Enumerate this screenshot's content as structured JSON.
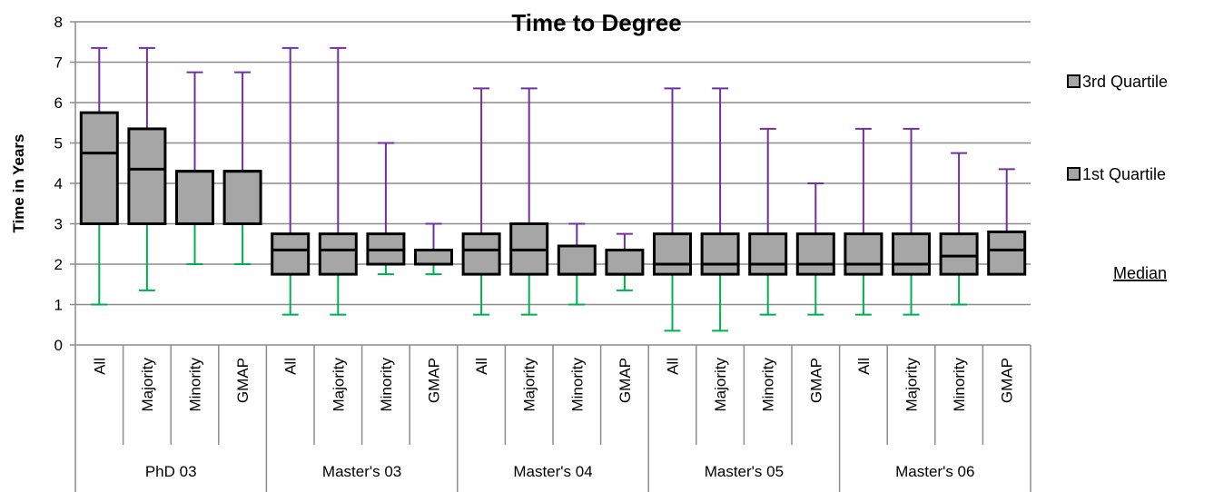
{
  "chart_data": {
    "type": "box",
    "title": "Time to Degree",
    "ylabel": "Time in Years",
    "xlabel": "",
    "ylim": [
      0,
      8
    ],
    "yticks": [
      "0",
      "1",
      "2",
      "3",
      "4",
      "5",
      "6",
      "7",
      "8"
    ],
    "grid": true,
    "legend_position": "right",
    "legend": [
      "3rd Quartile",
      "1st Quartile",
      "Median"
    ],
    "groups": [
      {
        "name": "PhD 03",
        "categories": [
          "All",
          "Majority",
          "Minority",
          "GMAP"
        ]
      },
      {
        "name": "Master's 03",
        "categories": [
          "All",
          "Majority",
          "Minority",
          "GMAP"
        ]
      },
      {
        "name": "Master's 04",
        "categories": [
          "All",
          "Majority",
          "Minority",
          "GMAP"
        ]
      },
      {
        "name": "Master's 05",
        "categories": [
          "All",
          "Majority",
          "Minority",
          "GMAP"
        ]
      },
      {
        "name": "Master's 06",
        "categories": [
          "All",
          "Majority",
          "Minority",
          "GMAP"
        ]
      }
    ],
    "boxes": [
      {
        "min": 1.0,
        "q1": 3.0,
        "median": 4.75,
        "q3": 5.75,
        "max": 7.35
      },
      {
        "min": 1.35,
        "q1": 3.0,
        "median": 4.35,
        "q3": 5.35,
        "max": 7.35
      },
      {
        "min": 2.0,
        "q1": 3.0,
        "median": 4.3,
        "q3": 4.3,
        "max": 6.75
      },
      {
        "min": 2.0,
        "q1": 3.0,
        "median": 4.3,
        "q3": 4.3,
        "max": 6.75
      },
      {
        "min": 0.75,
        "q1": 1.75,
        "median": 2.35,
        "q3": 2.75,
        "max": 7.35
      },
      {
        "min": 0.75,
        "q1": 1.75,
        "median": 2.35,
        "q3": 2.75,
        "max": 7.35
      },
      {
        "min": 1.75,
        "q1": 2.0,
        "median": 2.35,
        "q3": 2.75,
        "max": 5.0
      },
      {
        "min": 1.75,
        "q1": 2.0,
        "median": 2.0,
        "q3": 2.35,
        "max": 3.0
      },
      {
        "min": 0.75,
        "q1": 1.75,
        "median": 2.35,
        "q3": 2.75,
        "max": 6.35
      },
      {
        "min": 0.75,
        "q1": 1.75,
        "median": 2.35,
        "q3": 3.0,
        "max": 6.35
      },
      {
        "min": 1.0,
        "q1": 1.75,
        "median": 1.75,
        "q3": 2.45,
        "max": 3.0
      },
      {
        "min": 1.35,
        "q1": 1.75,
        "median": 1.75,
        "q3": 2.35,
        "max": 2.75
      },
      {
        "min": 0.35,
        "q1": 1.75,
        "median": 2.0,
        "q3": 2.75,
        "max": 6.35
      },
      {
        "min": 0.35,
        "q1": 1.75,
        "median": 2.0,
        "q3": 2.75,
        "max": 6.35
      },
      {
        "min": 0.75,
        "q1": 1.75,
        "median": 2.0,
        "q3": 2.75,
        "max": 5.35
      },
      {
        "min": 0.75,
        "q1": 1.75,
        "median": 2.0,
        "q3": 2.75,
        "max": 4.0
      },
      {
        "min": 0.75,
        "q1": 1.75,
        "median": 2.0,
        "q3": 2.75,
        "max": 5.35
      },
      {
        "min": 0.75,
        "q1": 1.75,
        "median": 2.0,
        "q3": 2.75,
        "max": 5.35
      },
      {
        "min": 1.0,
        "q1": 1.75,
        "median": 2.2,
        "q3": 2.75,
        "max": 4.75
      },
      {
        "min": 1.75,
        "q1": 1.75,
        "median": 2.35,
        "q3": 2.8,
        "max": 4.35
      }
    ]
  },
  "colors": {
    "box_fill": "#a6a6a6",
    "box_stroke": "#000000",
    "upper_whisker": "#7030a0",
    "lower_whisker": "#00b050",
    "grid": "#8c8c8c",
    "axis": "#8c8c8c"
  }
}
